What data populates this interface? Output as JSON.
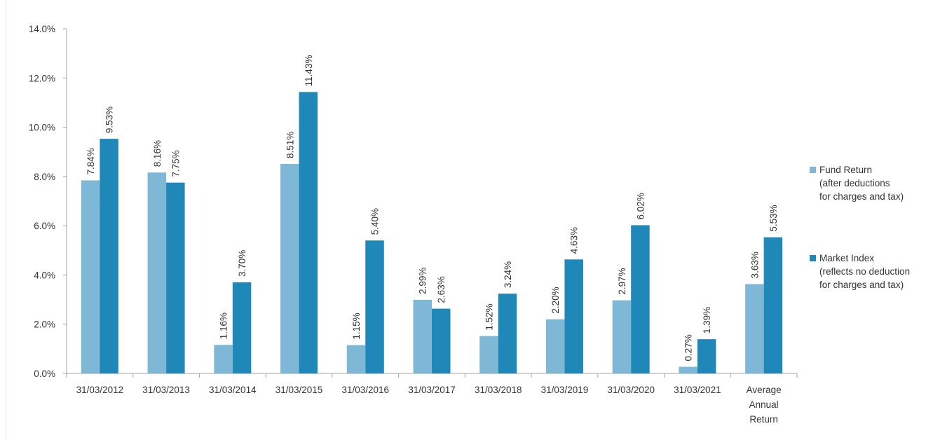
{
  "chart_data": {
    "type": "bar",
    "categories": [
      [
        "31/03/2012"
      ],
      [
        "31/03/2013"
      ],
      [
        "31/03/2014"
      ],
      [
        "31/03/2015"
      ],
      [
        "31/03/2016"
      ],
      [
        "31/03/2017"
      ],
      [
        "31/03/2018"
      ],
      [
        "31/03/2019"
      ],
      [
        "31/03/2020"
      ],
      [
        "31/03/2021"
      ],
      [
        "Average",
        "Annual",
        "Return"
      ]
    ],
    "series": [
      {
        "name": "Fund Return (after deductions for charges and tax)",
        "legend_lines": [
          "Fund Return",
          "(after deductions",
          "for charges and tax)"
        ],
        "color": "#7fb8d6",
        "values": [
          7.84,
          8.16,
          1.16,
          8.51,
          1.15,
          2.99,
          1.52,
          2.2,
          2.97,
          0.27,
          3.63
        ],
        "labels": [
          "7.84%",
          "8.16%",
          "1.16%",
          "8.51%",
          "1.15%",
          "2.99%",
          "1.52%",
          "2.20%",
          "2.97%",
          "0.27%",
          "3.63%"
        ]
      },
      {
        "name": "Market Index (reflects no deduction for charges and tax)",
        "legend_lines": [
          "Market Index",
          "(reflects no deduction",
          "for charges and tax)"
        ],
        "color": "#1f88b8",
        "values": [
          9.53,
          7.75,
          3.7,
          11.43,
          5.4,
          2.63,
          3.24,
          4.63,
          6.02,
          1.39,
          5.53
        ],
        "labels": [
          "9.53%",
          "7.75%",
          "3.70%",
          "11.43%",
          "5.40%",
          "2.63%",
          "3.24%",
          "4.63%",
          "6.02%",
          "1.39%",
          "5.53%"
        ]
      }
    ],
    "y_ticks": [
      "0.0%",
      "2.0%",
      "4.0%",
      "6.0%",
      "8.0%",
      "10.0%",
      "12.0%",
      "14.0%"
    ],
    "ylim": [
      0,
      14
    ],
    "grid": false,
    "legend_position": "right"
  }
}
